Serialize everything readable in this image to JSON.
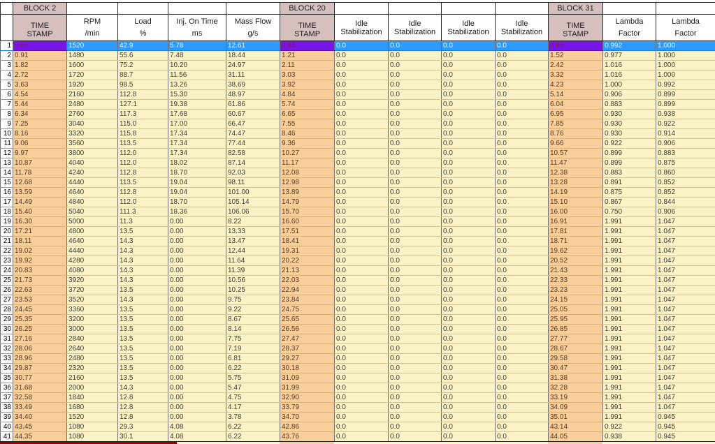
{
  "table": {
    "columns": [
      {
        "name": "row-number",
        "line1": "",
        "line2": "",
        "kind": "rownum"
      },
      {
        "name": "block2-timestamp",
        "block": "BLOCK 2",
        "line1": "TIME",
        "line2": "STAMP",
        "kind": "timestamp"
      },
      {
        "name": "rpm",
        "line1": "RPM",
        "line2": "/min",
        "kind": "measure"
      },
      {
        "name": "load",
        "line1": "Load",
        "line2": "%",
        "kind": "measure"
      },
      {
        "name": "inj-on-time",
        "line1": "Inj. On Time",
        "line2": "ms",
        "kind": "measure"
      },
      {
        "name": "mass-flow",
        "line1": "Mass Flow",
        "line2": "g/s",
        "kind": "measure"
      },
      {
        "name": "block20-timestamp",
        "block": "BLOCK 20",
        "line1": "TIME",
        "line2": "STAMP",
        "kind": "timestamp"
      },
      {
        "name": "idle-stabilization-1",
        "line1": "Idle",
        "line2": "Stabilization",
        "kind": "idle"
      },
      {
        "name": "idle-stabilization-2",
        "line1": "Idle",
        "line2": "Stabilization",
        "kind": "idle"
      },
      {
        "name": "idle-stabilization-3",
        "line1": "Idle",
        "line2": "Stabilization",
        "kind": "idle"
      },
      {
        "name": "idle-stabilization-4",
        "line1": "Idle",
        "line2": "Stabilization",
        "kind": "idle"
      },
      {
        "name": "block31-timestamp",
        "block": "BLOCK 31",
        "line1": "TIME",
        "line2": "STAMP",
        "kind": "timestamp"
      },
      {
        "name": "lambda-factor-1",
        "line1": "Lambda",
        "line2": "Factor",
        "kind": "measure"
      },
      {
        "name": "lambda-factor-2",
        "line1": "Lambda",
        "line2": "Factor",
        "kind": "measure"
      }
    ],
    "selected_row_number": "1",
    "rows": [
      [
        "1",
        "0.01",
        "1520",
        "42.9",
        "5.78",
        "12.61",
        "0.31",
        "0.0",
        "0.0",
        "0.0",
        "0.0",
        "0.61",
        "0.992",
        "1.000"
      ],
      [
        "2",
        "0.91",
        "1480",
        "55.6",
        "7.48",
        "18.44",
        "1.21",
        "0.0",
        "0.0",
        "0.0",
        "0.0",
        "1.52",
        "0.977",
        "1.000"
      ],
      [
        "3",
        "1.82",
        "1600",
        "75.2",
        "10.20",
        "24.97",
        "2.11",
        "0.0",
        "0.0",
        "0.0",
        "0.0",
        "2.42",
        "1.016",
        "1.000"
      ],
      [
        "4",
        "2.72",
        "1720",
        "88.7",
        "11.56",
        "31.11",
        "3.03",
        "0.0",
        "0.0",
        "0.0",
        "0.0",
        "3.32",
        "1.016",
        "1.000"
      ],
      [
        "5",
        "3.63",
        "1920",
        "98.5",
        "13.26",
        "38.69",
        "3.92",
        "0.0",
        "0.0",
        "0.0",
        "0.0",
        "4.23",
        "1.000",
        "0.992"
      ],
      [
        "6",
        "4.54",
        "2160",
        "112.8",
        "15.30",
        "48.97",
        "4.84",
        "0.0",
        "0.0",
        "0.0",
        "0.0",
        "5.14",
        "0.906",
        "0.899"
      ],
      [
        "7",
        "5.44",
        "2480",
        "127.1",
        "19.38",
        "61.86",
        "5.74",
        "0.0",
        "0.0",
        "0.0",
        "0.0",
        "6.04",
        "0.883",
        "0.899"
      ],
      [
        "8",
        "6.34",
        "2760",
        "117.3",
        "17.68",
        "60.67",
        "6.65",
        "0.0",
        "0.0",
        "0.0",
        "0.0",
        "6.95",
        "0.930",
        "0.938"
      ],
      [
        "9",
        "7.25",
        "3040",
        "115.0",
        "17.00",
        "66.47",
        "7.55",
        "0.0",
        "0.0",
        "0.0",
        "0.0",
        "7.85",
        "0.930",
        "0.922"
      ],
      [
        "10",
        "8.16",
        "3320",
        "115.8",
        "17.34",
        "74.47",
        "8.46",
        "0.0",
        "0.0",
        "0.0",
        "0.0",
        "8.76",
        "0.930",
        "0.914"
      ],
      [
        "11",
        "9.06",
        "3560",
        "113.5",
        "17.34",
        "77.44",
        "9.36",
        "0.0",
        "0.0",
        "0.0",
        "0.0",
        "9.66",
        "0.922",
        "0.906"
      ],
      [
        "12",
        "9.97",
        "3800",
        "112.0",
        "17.34",
        "82.58",
        "10.27",
        "0.0",
        "0.0",
        "0.0",
        "0.0",
        "10.57",
        "0.899",
        "0.883"
      ],
      [
        "13",
        "10.87",
        "4040",
        "112.0",
        "18.02",
        "87.14",
        "11.17",
        "0.0",
        "0.0",
        "0.0",
        "0.0",
        "11.47",
        "0.899",
        "0.875"
      ],
      [
        "14",
        "11.78",
        "4240",
        "112.8",
        "18.70",
        "92.03",
        "12.08",
        "0.0",
        "0.0",
        "0.0",
        "0.0",
        "12.38",
        "0.883",
        "0.860"
      ],
      [
        "15",
        "12.68",
        "4440",
        "113.5",
        "19.04",
        "98.11",
        "12.98",
        "0.0",
        "0.0",
        "0.0",
        "0.0",
        "13.28",
        "0.891",
        "0.852"
      ],
      [
        "16",
        "13.59",
        "4640",
        "112.8",
        "19.04",
        "101.00",
        "13.89",
        "0.0",
        "0.0",
        "0.0",
        "0.0",
        "14.19",
        "0.875",
        "0.852"
      ],
      [
        "17",
        "14.49",
        "4840",
        "112.0",
        "18.70",
        "105.14",
        "14.79",
        "0.0",
        "0.0",
        "0.0",
        "0.0",
        "15.10",
        "0.867",
        "0.844"
      ],
      [
        "18",
        "15.40",
        "5040",
        "111.3",
        "18.36",
        "106.06",
        "15.70",
        "0.0",
        "0.0",
        "0.0",
        "0.0",
        "16.00",
        "0.750",
        "0.906"
      ],
      [
        "19",
        "16.30",
        "5000",
        "11.3",
        "0.00",
        "8.22",
        "16.60",
        "0.0",
        "0.0",
        "0.0",
        "0.0",
        "16.91",
        "1.991",
        "1.047"
      ],
      [
        "20",
        "17.21",
        "4800",
        "13.5",
        "0.00",
        "13.33",
        "17.51",
        "0.0",
        "0.0",
        "0.0",
        "0.0",
        "17.81",
        "1.991",
        "1.047"
      ],
      [
        "21",
        "18.11",
        "4640",
        "14.3",
        "0.00",
        "13.47",
        "18.41",
        "0.0",
        "0.0",
        "0.0",
        "0.0",
        "18.71",
        "1.991",
        "1.047"
      ],
      [
        "22",
        "19.02",
        "4440",
        "14.3",
        "0.00",
        "12.44",
        "19.31",
        "0.0",
        "0.0",
        "0.0",
        "0.0",
        "19.62",
        "1.991",
        "1.047"
      ],
      [
        "23",
        "19.92",
        "4280",
        "14.3",
        "0.00",
        "11.64",
        "20.22",
        "0.0",
        "0.0",
        "0.0",
        "0.0",
        "20.52",
        "1.991",
        "1.047"
      ],
      [
        "24",
        "20.83",
        "4080",
        "14.3",
        "0.00",
        "11.39",
        "21.13",
        "0.0",
        "0.0",
        "0.0",
        "0.0",
        "21.43",
        "1.991",
        "1.047"
      ],
      [
        "25",
        "21.73",
        "3920",
        "14.3",
        "0.00",
        "10.56",
        "22.03",
        "0.0",
        "0.0",
        "0.0",
        "0.0",
        "22.33",
        "1.991",
        "1.047"
      ],
      [
        "26",
        "22.63",
        "3720",
        "13.5",
        "0.00",
        "10.25",
        "22.94",
        "0.0",
        "0.0",
        "0.0",
        "0.0",
        "23.23",
        "1.991",
        "1.047"
      ],
      [
        "27",
        "23.53",
        "3520",
        "14.3",
        "0.00",
        "9.75",
        "23.84",
        "0.0",
        "0.0",
        "0.0",
        "0.0",
        "24.15",
        "1.991",
        "1.047"
      ],
      [
        "28",
        "24.45",
        "3360",
        "13.5",
        "0.00",
        "9.22",
        "24.75",
        "0.0",
        "0.0",
        "0.0",
        "0.0",
        "25.05",
        "1.991",
        "1.047"
      ],
      [
        "29",
        "25.35",
        "3200",
        "13.5",
        "0.00",
        "8.67",
        "25.65",
        "0.0",
        "0.0",
        "0.0",
        "0.0",
        "25.95",
        "1.991",
        "1.047"
      ],
      [
        "30",
        "26.25",
        "3000",
        "13.5",
        "0.00",
        "8.14",
        "26.56",
        "0.0",
        "0.0",
        "0.0",
        "0.0",
        "26.85",
        "1.991",
        "1.047"
      ],
      [
        "31",
        "27.16",
        "2840",
        "13.5",
        "0.00",
        "7.75",
        "27.47",
        "0.0",
        "0.0",
        "0.0",
        "0.0",
        "27.77",
        "1.991",
        "1.047"
      ],
      [
        "32",
        "28.06",
        "2640",
        "13.5",
        "0.00",
        "7.19",
        "28.37",
        "0.0",
        "0.0",
        "0.0",
        "0.0",
        "28.67",
        "1.991",
        "1.047"
      ],
      [
        "33",
        "28.96",
        "2480",
        "13.5",
        "0.00",
        "6.81",
        "29.27",
        "0.0",
        "0.0",
        "0.0",
        "0.0",
        "29.58",
        "1.991",
        "1.047"
      ],
      [
        "34",
        "29.87",
        "2320",
        "13.5",
        "0.00",
        "6.22",
        "30.18",
        "0.0",
        "0.0",
        "0.0",
        "0.0",
        "30.47",
        "1.991",
        "1.047"
      ],
      [
        "35",
        "30.77",
        "2160",
        "13.5",
        "0.00",
        "5.75",
        "31.09",
        "0.0",
        "0.0",
        "0.0",
        "0.0",
        "31.38",
        "1.991",
        "1.047"
      ],
      [
        "36",
        "31.68",
        "2000",
        "14.3",
        "0.00",
        "5.47",
        "31.99",
        "0.0",
        "0.0",
        "0.0",
        "0.0",
        "32.28",
        "1.991",
        "1.047"
      ],
      [
        "37",
        "32.58",
        "1840",
        "12.8",
        "0.00",
        "4.75",
        "32.90",
        "0.0",
        "0.0",
        "0.0",
        "0.0",
        "33.19",
        "1.991",
        "1.047"
      ],
      [
        "38",
        "33.49",
        "1680",
        "12.8",
        "0.00",
        "4.17",
        "33.79",
        "0.0",
        "0.0",
        "0.0",
        "0.0",
        "34.09",
        "1.991",
        "1.047"
      ],
      [
        "39",
        "34.40",
        "1520",
        "12.8",
        "0.00",
        "3.78",
        "34.70",
        "0.0",
        "0.0",
        "0.0",
        "0.0",
        "35.01",
        "1.991",
        "0.945"
      ],
      [
        "40",
        "43.45",
        "1080",
        "29.3",
        "4.08",
        "6.22",
        "42.86",
        "0.0",
        "0.0",
        "0.0",
        "0.0",
        "43.14",
        "0.922",
        "0.945"
      ],
      [
        "41",
        "44.35",
        "1080",
        "30.1",
        "4.08",
        "6.22",
        "43.76",
        "0.0",
        "0.0",
        "0.0",
        "0.0",
        "44.05",
        "0.938",
        "0.945"
      ]
    ]
  },
  "colors": {
    "header_block_bg": "#d5bfbf",
    "timestamp_cell_bg": "#f9ce9a",
    "data_cell_bg": "#fbf3c6",
    "selected_row_bg": "#2e9afe",
    "selected_timestamp_bg": "#7714e6",
    "selected_text": "#e8f3ff",
    "selected_timestamp_text": "#8b1d1d",
    "timestamp_text": "#4f3a28",
    "data_text": "#3c3c3c",
    "bottom_marker": "#a00000"
  }
}
